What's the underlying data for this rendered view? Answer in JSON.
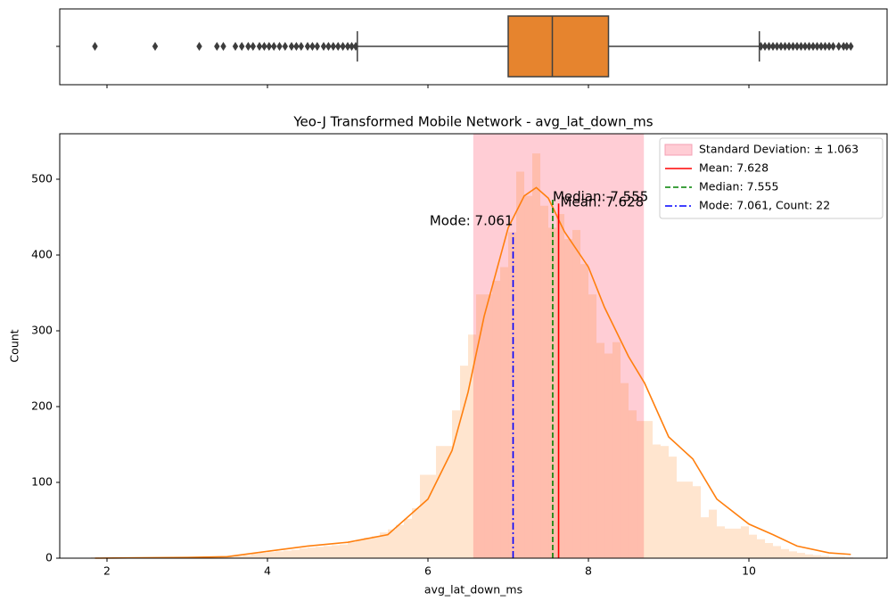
{
  "chart_data": [
    {
      "type": "box",
      "color": "#e6842e",
      "box": {
        "whislo": 5.12,
        "q1": 7.0,
        "med": 7.55,
        "q3": 8.25,
        "whishi": 10.13,
        "fliers": [
          1.85,
          2.6,
          3.15,
          3.37,
          3.45,
          3.6,
          3.68,
          3.76,
          3.82,
          3.9,
          3.96,
          4.02,
          4.08,
          4.15,
          4.22,
          4.3,
          4.36,
          4.42,
          4.5,
          4.56,
          4.62,
          4.7,
          4.76,
          4.82,
          4.88,
          4.94,
          5.0,
          5.05,
          5.1,
          10.15,
          10.2,
          10.25,
          10.3,
          10.35,
          10.4,
          10.45,
          10.5,
          10.55,
          10.6,
          10.65,
          10.7,
          10.75,
          10.8,
          10.85,
          10.9,
          10.95,
          11.0,
          11.05,
          11.12,
          11.18,
          11.22,
          11.27
        ]
      },
      "xlim": [
        1.411,
        11.722
      ],
      "xticks": [
        2,
        4,
        6,
        8,
        10
      ]
    },
    {
      "type": "histogram",
      "title": "Yeo-J Transformed Mobile Network - avg_lat_down_ms",
      "xlabel": "avg_lat_down_ms",
      "ylabel": "Count",
      "color": "#ff7f0e33",
      "bins": [
        1.8,
        1.9,
        2,
        2.1,
        2.2,
        2.3,
        2.4,
        2.5,
        2.6,
        2.7,
        2.8,
        2.9,
        3,
        3.1,
        3.2,
        3.3,
        3.4,
        3.5,
        3.6,
        3.7,
        3.8,
        3.9,
        4,
        4.1,
        4.2,
        4.3,
        4.4,
        4.5,
        4.6,
        4.7,
        4.8,
        4.9,
        5,
        5.1,
        5.2,
        5.3,
        5.4,
        5.5,
        5.6,
        5.7,
        5.8,
        5.9,
        6,
        6.1,
        6.2,
        6.3,
        6.4,
        6.5,
        6.6,
        6.7,
        6.8,
        6.9,
        7,
        7.1,
        7.2,
        7.3,
        7.4,
        7.5,
        7.6,
        7.7,
        7.8,
        7.9,
        8,
        8.1,
        8.2,
        8.3,
        8.4,
        8.5,
        8.6,
        8.7,
        8.8,
        8.9,
        9,
        9.1,
        9.2,
        9.3,
        9.4,
        9.5,
        9.6,
        9.7,
        9.8,
        9.9,
        10,
        10.1,
        10.2,
        10.3,
        10.4,
        10.5,
        10.6,
        10.7,
        10.8,
        10.9,
        11,
        11.1,
        11.2,
        11.3
      ],
      "values": [
        1,
        0,
        0,
        0,
        0,
        0,
        0,
        0,
        1,
        0,
        0,
        0,
        0,
        1,
        1,
        0,
        2,
        2,
        3,
        4,
        6,
        7,
        8,
        9,
        10,
        11,
        13,
        14,
        15,
        16,
        17,
        18,
        21,
        24,
        27,
        29,
        34,
        38,
        44,
        52,
        66,
        110,
        110,
        148,
        148,
        195,
        254,
        295,
        348,
        348,
        366,
        384,
        430,
        510,
        478,
        534,
        465,
        436,
        454,
        421,
        433,
        388,
        348,
        284,
        270,
        285,
        231,
        195,
        181,
        181,
        150,
        148,
        134,
        101,
        101,
        95,
        54,
        64,
        42,
        39,
        39,
        42,
        31,
        25,
        20,
        16,
        12,
        9,
        7,
        5,
        4,
        3,
        2,
        2,
        1
      ],
      "kde": {
        "color": "#ff7f0e",
        "x": [
          1.85,
          3.0,
          3.5,
          4.0,
          4.5,
          5.0,
          5.5,
          6.0,
          6.3,
          6.5,
          6.7,
          7.0,
          7.2,
          7.35,
          7.5,
          7.7,
          8.0,
          8.2,
          8.5,
          8.7,
          9.0,
          9.3,
          9.6,
          10.0,
          10.3,
          10.6,
          11.0,
          11.27
        ],
        "y": [
          0,
          1,
          2,
          9,
          16,
          21,
          31,
          78,
          142,
          219,
          319,
          436,
          478,
          489,
          475,
          431,
          384,
          331,
          266,
          231,
          160,
          131,
          78,
          45,
          31,
          16,
          7,
          5
        ]
      },
      "std": {
        "value": 1.063,
        "label": "Standard Deviation: ± 1.063",
        "color": "#ffc0cbcc"
      },
      "mean": {
        "value": 7.628,
        "top": 468,
        "label": "Mean: 7.628",
        "annotation": "Mean: 7.628",
        "color": "#ff0000",
        "linestyle": "solid"
      },
      "median": {
        "value": 7.555,
        "top": 473,
        "label": "Median: 7.555",
        "annotation": "Median: 7.555",
        "color": "#008000",
        "linestyle": "dashed"
      },
      "mode": {
        "value": 7.061,
        "top": 433,
        "label": "Mode: 7.061, Count: 22",
        "annotation": "Mode: 7.061",
        "color": "#0000ff",
        "linestyle": "dashdot"
      },
      "legend": "upper right",
      "xlim": [
        1.411,
        11.722
      ],
      "ylim": [
        0,
        560
      ],
      "xticks": [
        2,
        4,
        6,
        8,
        10
      ],
      "yticks": [
        0,
        100,
        200,
        300,
        400,
        500
      ]
    }
  ]
}
